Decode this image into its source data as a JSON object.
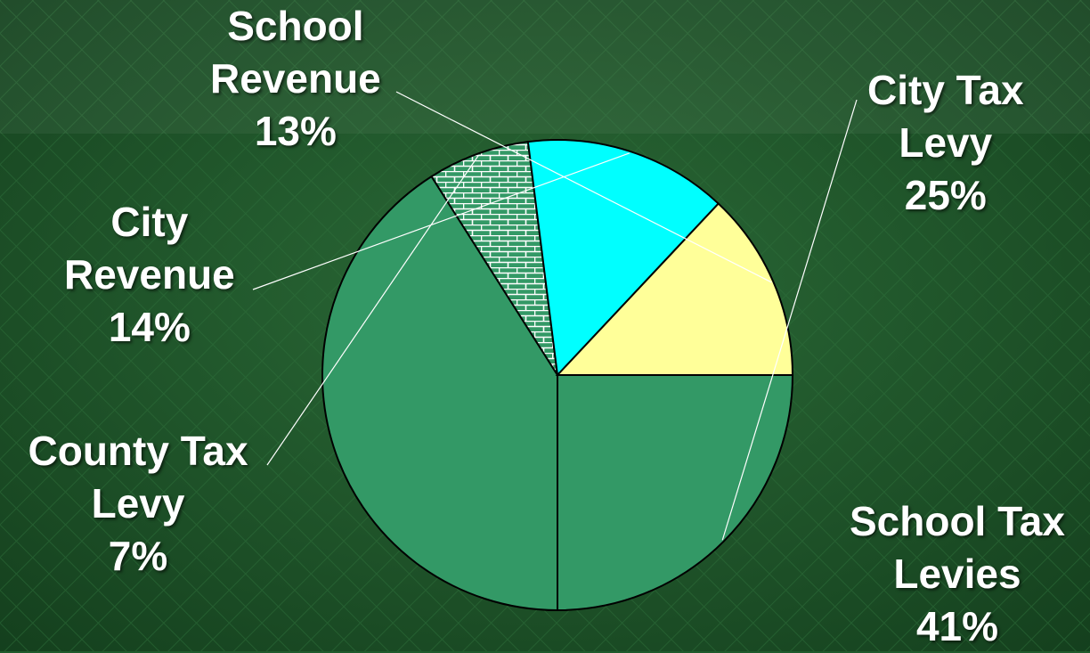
{
  "chart_data": {
    "type": "pie",
    "title": "",
    "slices": [
      {
        "label_lines": [
          "City Tax",
          "Levy"
        ],
        "percent_label": "25%",
        "value": 25,
        "color": "#339966",
        "pattern": "solid"
      },
      {
        "label_lines": [
          "School Tax",
          "Levies"
        ],
        "percent_label": "41%",
        "value": 41,
        "color": "#339966",
        "pattern": "solid"
      },
      {
        "label_lines": [
          "County Tax",
          "Levy"
        ],
        "percent_label": "7%",
        "value": 7,
        "color": "#339966",
        "pattern": "brick"
      },
      {
        "label_lines": [
          "City",
          "Revenue"
        ],
        "percent_label": "14%",
        "value": 14,
        "color": "#00FFFF",
        "pattern": "solid"
      },
      {
        "label_lines": [
          "School",
          "Revenue"
        ],
        "percent_label": "13%",
        "value": 13,
        "color": "#FFFF99",
        "pattern": "solid"
      }
    ],
    "start_angle_deg": 0,
    "direction": "clockwise",
    "legend": "none",
    "labels_placement": "outside-with-leader-lines"
  }
}
